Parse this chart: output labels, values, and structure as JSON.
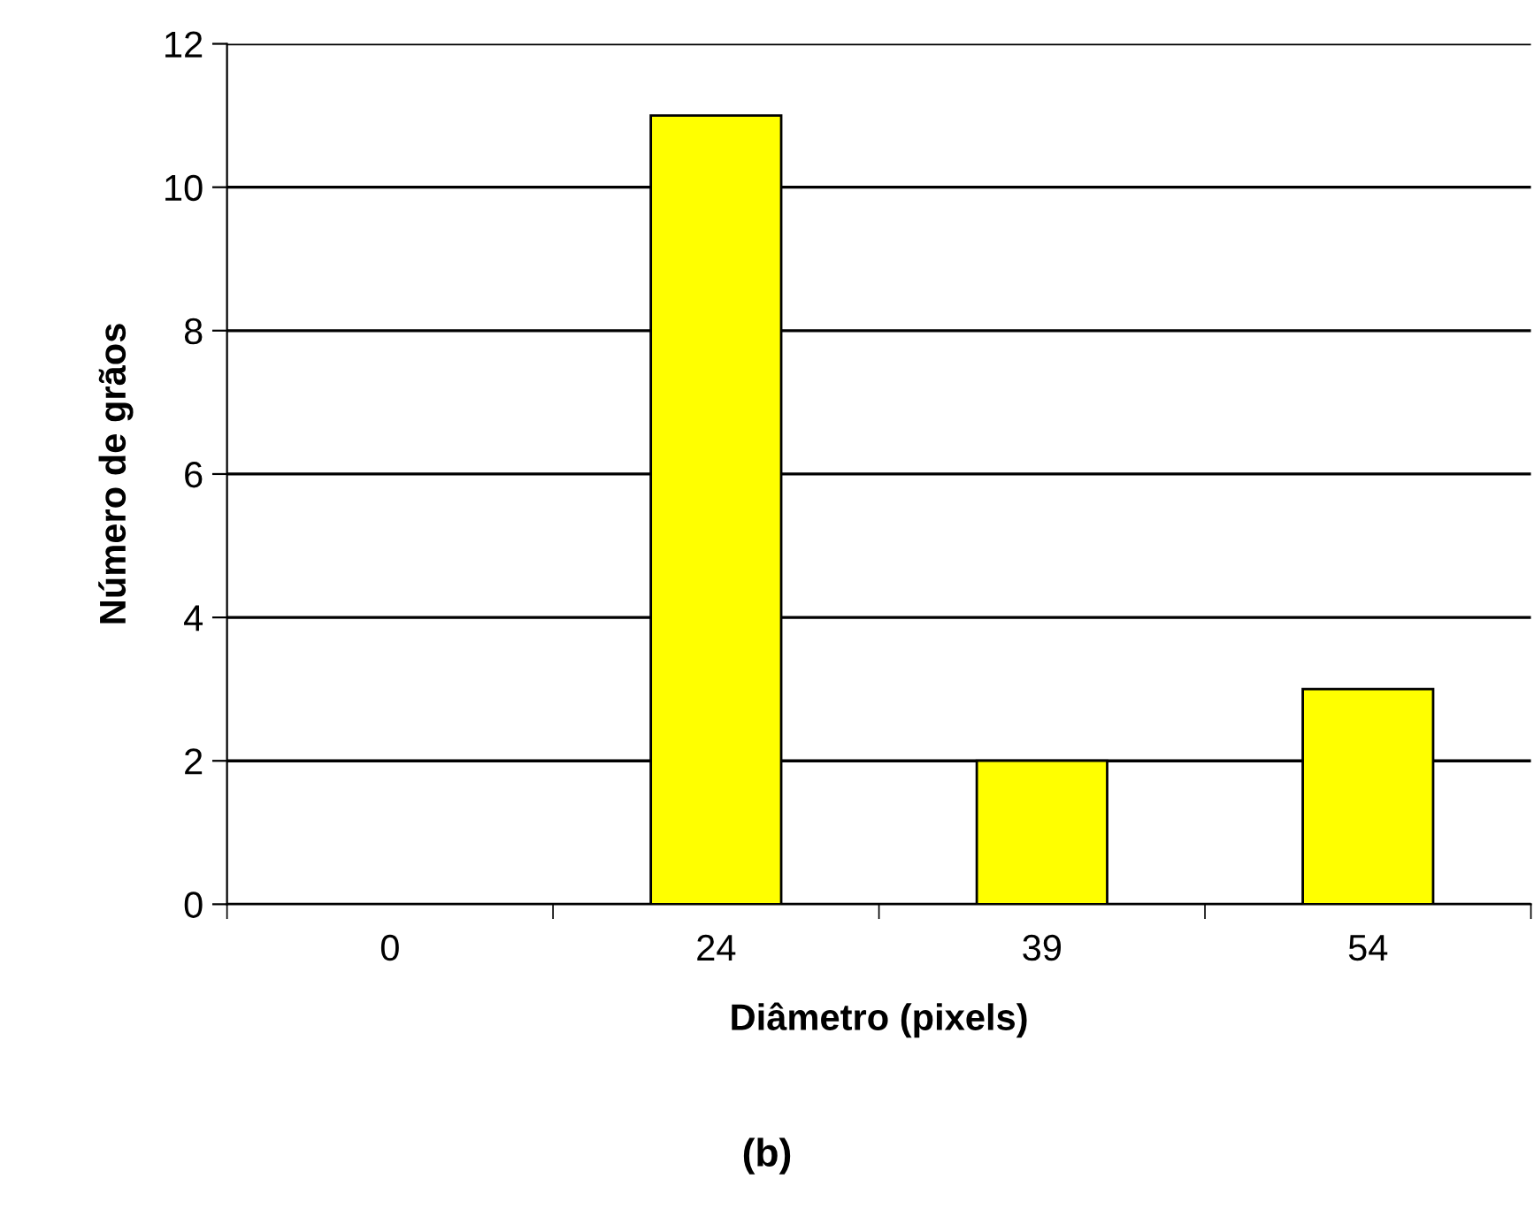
{
  "chart_data": {
    "type": "bar",
    "xlabel": "Diâmetro (pixels)",
    "ylabel": "Número de grãos",
    "categories": [
      "0",
      "24",
      "39",
      "54"
    ],
    "values": [
      0,
      11,
      2,
      3
    ],
    "color": "#ffff00",
    "ylim": [
      0,
      12
    ],
    "yticks": [
      0,
      2,
      4,
      6,
      8,
      10,
      12
    ],
    "grid": "y",
    "annotations": [
      "(b)"
    ]
  }
}
